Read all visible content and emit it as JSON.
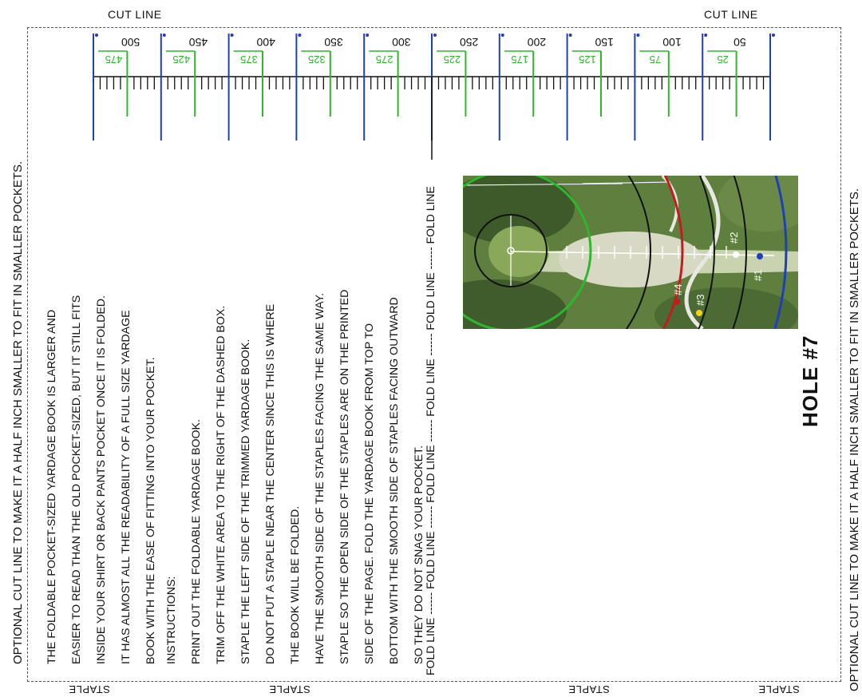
{
  "cut_line": {
    "left": "CUT LINE",
    "right": "CUT LINE"
  },
  "side_notes": {
    "left": "OPTIONAL CUT LINE TO MAKE IT A HALF INCH SMALLER TO FIT IN SMALLER POCKETS.",
    "right": "OPTIONAL CUT LINE TO MAKE IT A HALF INCH SMALLER TO FIT IN SMALLER POCKETS."
  },
  "staples": [
    "STAPLE",
    "STAPLE",
    "STAPLE",
    "STAPLE"
  ],
  "intro_lines": [
    "THE FOLDABLE POCKET-SIZED YARDAGE BOOK IS LARGER AND",
    "EASIER TO READ THAN THE OLD POCKET-SIZED, BUT IT STILL FITS",
    "INSIDE YOUR SHIRT OR BACK PANTS POCKET ONCE IT IS FOLDED.",
    "IT HAS ALMOST ALL THE READABILITY OF A FULL SIZE YARDAGE",
    "BOOK WITH THE EASE OF FITTING INTO YOUR POCKET."
  ],
  "instruction_lines": [
    "INSTRUCTIONS:",
    "PRINT OUT THE FOLDABLE YARDAGE BOOK.",
    "TRIM OFF THE WHITE AREA TO THE RIGHT OF THE DASHED BOX.",
    "STAPLE THE LEFT SIDE OF THE TRIMMED YARDAGE BOOK.",
    "DO NOT PUT A STAPLE NEAR THE CENTER SINCE THIS IS WHERE",
    "THE BOOK WILL BE FOLDED.",
    "HAVE THE SMOOTH SIDE OF THE STAPLES FACING THE SAME WAY.",
    "STAPLE SO THE OPEN SIDE OF THE STAPLES ARE ON THE PRINTED",
    "SIDE OF THE PAGE. FOLD THE YARDAGE BOOK FROM TOP TO",
    "BOTTOM WITH THE SMOOTH SIDE OF STAPLES FACING OUTWARD",
    "SO THEY DO NOT SNAG YOUR POCKET."
  ],
  "fold_line": "FOLD  LINE ------ FOLD LINE ------ FOLD LINE ------ FOLD LINE ------ FOLD LINE ------ FOLD LINE",
  "hole_title": "HOLE #7",
  "ruler": {
    "blue_labels": [
      "500",
      "450",
      "400",
      "350",
      "300",
      "250",
      "200",
      "150",
      "100",
      "50"
    ],
    "green_labels": [
      "475",
      "425",
      "375",
      "325",
      "275",
      "225",
      "175",
      "125",
      "75",
      "25"
    ]
  },
  "tee_markers": [
    "#1",
    "#2",
    "#3",
    "#4"
  ],
  "colors": {
    "blue": "#1f3fb8",
    "green": "#2fb52f",
    "red": "#c21c1c",
    "yellow": "#f2d21b",
    "fairway": "#c9d3b0",
    "turf": "#5f7f3e"
  }
}
